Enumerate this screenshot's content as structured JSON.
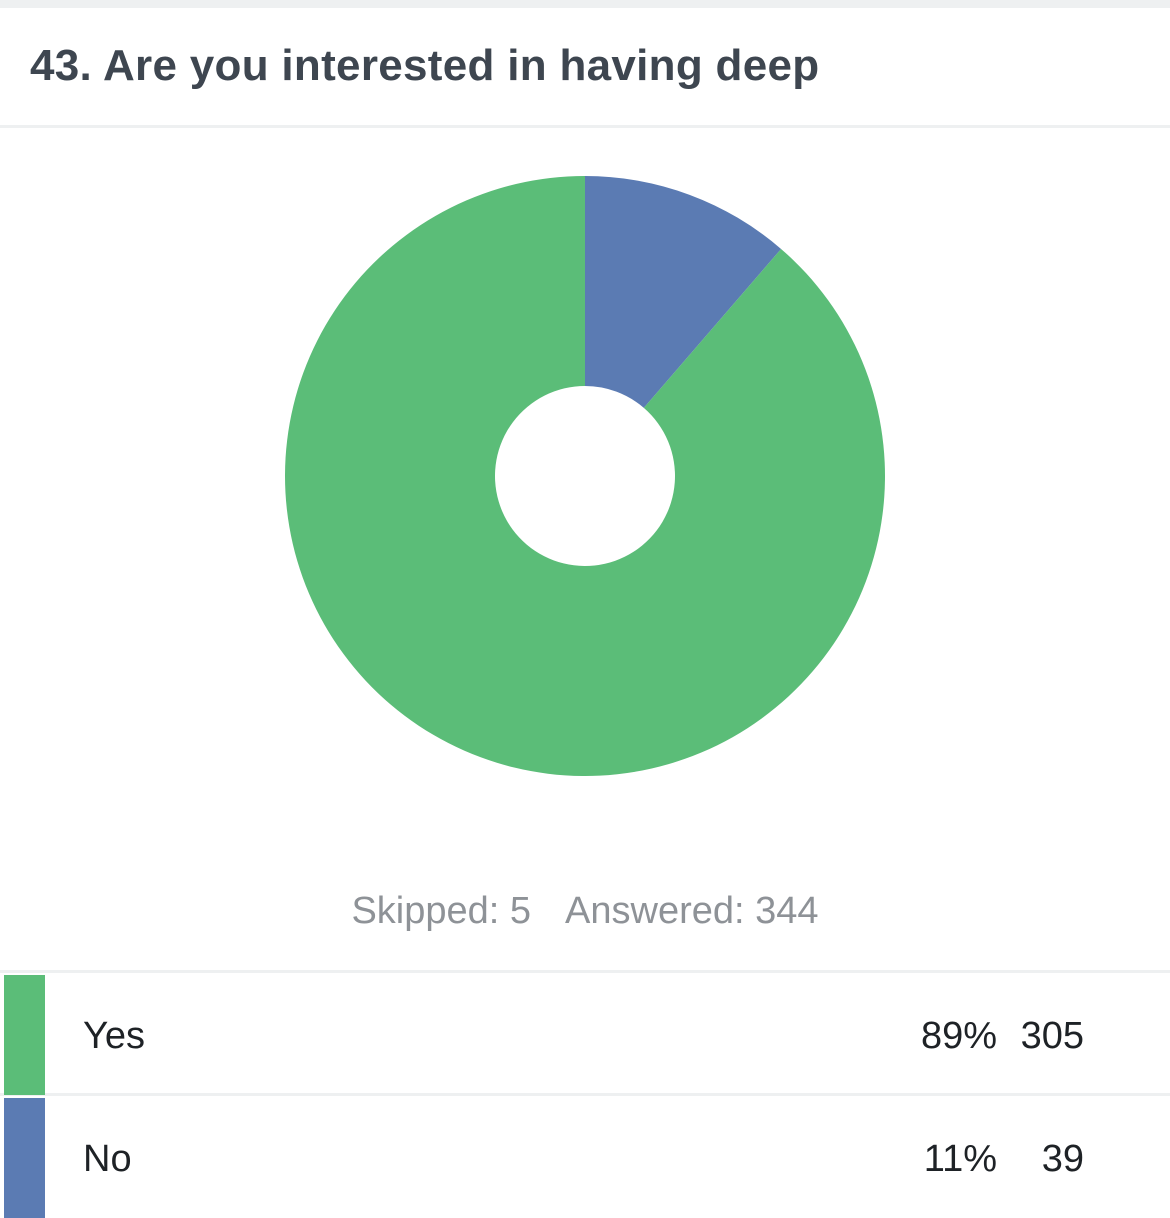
{
  "header": {
    "question_title": "43. Are you interested in having deep"
  },
  "summary": {
    "skipped_label": "Skipped: 5",
    "answered_label": "Answered: 344"
  },
  "chart_data": {
    "type": "pie",
    "donut": true,
    "start": "top",
    "direction": "clockwise",
    "categories": [
      "No",
      "Yes"
    ],
    "values": [
      39,
      305
    ],
    "colors": [
      "#5b7bb3",
      "#5bbd78"
    ]
  },
  "responses": [
    {
      "label": "Yes",
      "percent": "89%",
      "count": "305",
      "color": "#5bbd78"
    },
    {
      "label": "No",
      "percent": "11%",
      "count": "39",
      "color": "#5b7bb3"
    }
  ]
}
